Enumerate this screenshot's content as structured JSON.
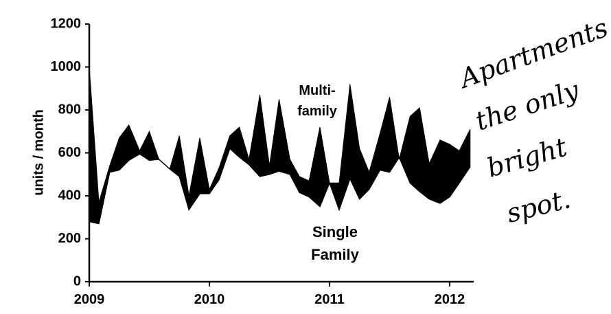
{
  "chart_data": {
    "type": "area",
    "ylabel": "units / month",
    "ylim": [
      0,
      1200
    ],
    "yticks": [
      0,
      200,
      400,
      600,
      800,
      1000,
      1200
    ],
    "xlim": [
      2009,
      2012.2
    ],
    "xticks": [
      "2009",
      "2010",
      "2011",
      "2012"
    ],
    "grid": false,
    "x": [
      2009.0,
      2009.08,
      2009.17,
      2009.25,
      2009.33,
      2009.42,
      2009.5,
      2009.58,
      2009.67,
      2009.75,
      2009.83,
      2009.92,
      2010.0,
      2010.08,
      2010.17,
      2010.25,
      2010.33,
      2010.42,
      2010.5,
      2010.58,
      2010.67,
      2010.75,
      2010.83,
      2010.92,
      2011.0,
      2011.08,
      2011.17,
      2011.25,
      2011.33,
      2011.42,
      2011.5,
      2011.58,
      2011.67,
      2011.75,
      2011.83,
      2011.92,
      2012.0,
      2012.08,
      2012.17
    ],
    "series": [
      {
        "name": "Single Family",
        "values": [
          280,
          270,
          510,
          520,
          565,
          595,
          565,
          570,
          525,
          490,
          335,
          410,
          410,
          475,
          620,
          580,
          545,
          490,
          500,
          515,
          500,
          415,
          395,
          350,
          460,
          335,
          480,
          385,
          430,
          520,
          510,
          580,
          460,
          420,
          385,
          365,
          395,
          460,
          535
        ]
      },
      {
        "name": "Multi-family",
        "values": [
          1000,
          370,
          540,
          670,
          730,
          610,
          700,
          570,
          525,
          680,
          400,
          670,
          430,
          530,
          680,
          720,
          570,
          870,
          540,
          850,
          570,
          490,
          470,
          720,
          460,
          460,
          920,
          620,
          510,
          690,
          860,
          570,
          770,
          810,
          550,
          660,
          640,
          610,
          710
        ]
      }
    ],
    "annotations": [
      {
        "text": "Apartments the only bright spot.",
        "style": "handwritten"
      }
    ]
  },
  "labels": {
    "multi_line1": "Multi-",
    "multi_line2": "family",
    "single_line1": "Single",
    "single_line2": "Family",
    "hand_1": "Apartments",
    "hand_2": "the only",
    "hand_3": "bright",
    "hand_4": "spot."
  }
}
